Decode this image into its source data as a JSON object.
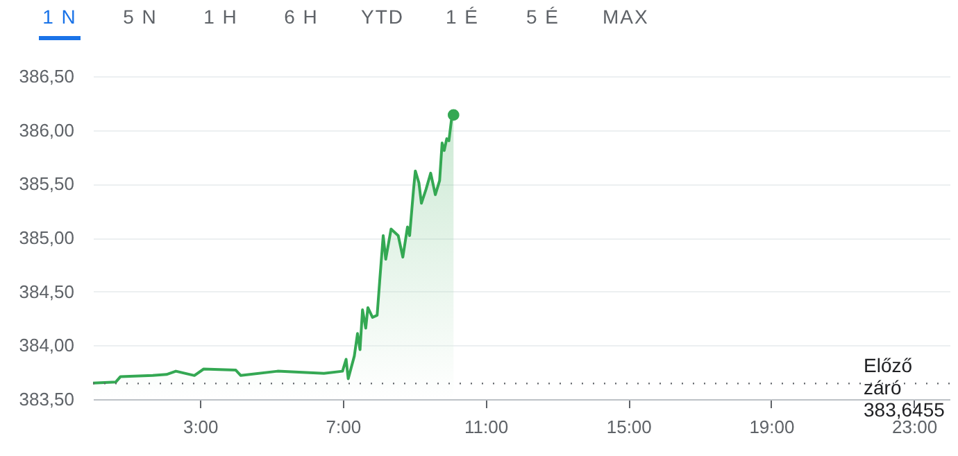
{
  "chart_data": {
    "type": "area",
    "annotations": [
      "1 N",
      "5 N",
      "1 H",
      "6 H",
      "YTD",
      "1 É",
      "5 É",
      "MAX"
    ],
    "x": [
      0,
      0.64,
      0.77,
      1.67,
      2.06,
      2.32,
      2.84,
      3.1,
      4.0,
      4.14,
      5.17,
      6.47,
      6.99,
      7.09,
      7.15,
      7.32,
      7.41,
      7.48,
      7.55,
      7.64,
      7.7,
      7.83,
      7.96,
      8.03,
      8.13,
      8.2,
      8.35,
      8.55,
      8.68,
      8.81,
      8.87,
      8.98,
      9.03,
      9.13,
      9.2,
      9.33,
      9.46,
      9.59,
      9.71,
      9.78,
      9.84,
      9.91,
      9.97,
      10.04,
      10.1
    ],
    "series": [
      {
        "color": "#34a853",
        "values": [
          383.65,
          383.66,
          383.71,
          383.72,
          383.73,
          383.76,
          383.72,
          383.78,
          383.77,
          383.72,
          383.76,
          383.74,
          383.76,
          383.87,
          383.69,
          383.9,
          384.11,
          383.96,
          384.33,
          384.16,
          384.35,
          384.26,
          384.28,
          384.59,
          385.02,
          384.8,
          385.08,
          385.02,
          384.82,
          385.1,
          385.02,
          385.45,
          385.62,
          385.51,
          385.32,
          385.45,
          385.6,
          385.4,
          385.53,
          385.88,
          385.81,
          385.92,
          385.9,
          386.09,
          386.14
        ]
      },
      {
        "type": "scatter",
        "color": "#34a853",
        "x": [
          10.1
        ],
        "values": [
          386.14
        ]
      }
    ],
    "xlim": [
      0,
      24
    ],
    "xticks": [
      {
        "value": 3,
        "label": "3:00"
      },
      {
        "value": 7,
        "label": "7:00"
      },
      {
        "value": 11,
        "label": "11:00"
      },
      {
        "value": 15,
        "label": "15:00"
      },
      {
        "value": 19,
        "label": "19:00"
      },
      {
        "value": 23,
        "label": "23:00"
      }
    ],
    "ylim": [
      383.5,
      386.5
    ],
    "yticks": [
      {
        "value": 383.5,
        "label": "383,50"
      },
      {
        "value": 384,
        "label": "384,00"
      },
      {
        "value": 384.5,
        "label": "384,50"
      },
      {
        "value": 385,
        "label": "385,00"
      },
      {
        "value": 385.5,
        "label": "385,50"
      },
      {
        "value": 386,
        "label": "386,00"
      },
      {
        "value": 386.5,
        "label": "386,50"
      }
    ],
    "grid": "y",
    "ref_lines": [
      {
        "axis": "y",
        "value": 383.6455,
        "label": "Előző záró 383,6455",
        "line_style": "dotted",
        "color": "#5f6368"
      }
    ]
  }
}
